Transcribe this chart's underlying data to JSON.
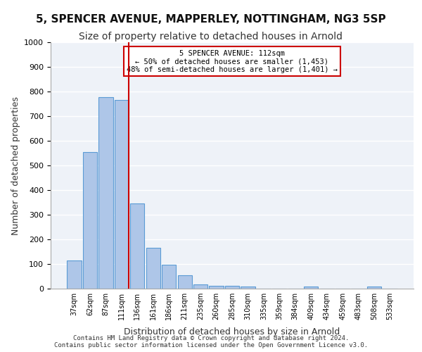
{
  "title1": "5, SPENCER AVENUE, MAPPERLEY, NOTTINGHAM, NG3 5SP",
  "title2": "Size of property relative to detached houses in Arnold",
  "xlabel": "Distribution of detached houses by size in Arnold",
  "ylabel": "Number of detached properties",
  "categories": [
    "37sqm",
    "62sqm",
    "87sqm",
    "111sqm",
    "136sqm",
    "161sqm",
    "186sqm",
    "211sqm",
    "235sqm",
    "260sqm",
    "285sqm",
    "310sqm",
    "335sqm",
    "359sqm",
    "384sqm",
    "409sqm",
    "434sqm",
    "459sqm",
    "483sqm",
    "508sqm",
    "533sqm"
  ],
  "values": [
    113,
    555,
    778,
    765,
    345,
    165,
    97,
    55,
    17,
    11,
    11,
    10,
    0,
    0,
    0,
    9,
    0,
    0,
    0,
    9,
    0
  ],
  "bar_color": "#aec6e8",
  "bar_edge_color": "#5b9bd5",
  "bg_color": "#eef2f8",
  "grid_color": "#ffffff",
  "vline_x": 3,
  "vline_color": "#cc0000",
  "annotation_text": "5 SPENCER AVENUE: 112sqm\n← 50% of detached houses are smaller (1,453)\n48% of semi-detached houses are larger (1,401) →",
  "annotation_box_color": "#cc0000",
  "footnote": "Contains HM Land Registry data © Crown copyright and database right 2024.\nContains public sector information licensed under the Open Government Licence v3.0.",
  "ylim": [
    0,
    1000
  ],
  "title1_fontsize": 11,
  "title2_fontsize": 10,
  "xlabel_fontsize": 9,
  "ylabel_fontsize": 9
}
